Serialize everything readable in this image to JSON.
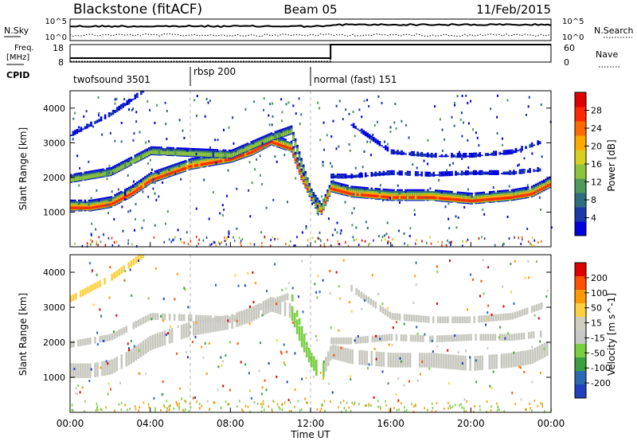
{
  "header": {
    "title": "Blackstone (fitACF)",
    "beam": "Beam 05",
    "date": "11/Feb/2015"
  },
  "noise_panel": {
    "left_label": "N.Sky",
    "right_label": "N.Search",
    "ticks_left": [
      "10^5",
      "10^0"
    ],
    "ticks_right": [
      "10^5",
      "10^0"
    ]
  },
  "freq_panel": {
    "left_label_1": "Freq.",
    "left_label_2": "[MHz]",
    "right_label": "Nave",
    "ticks_left": [
      "18",
      "8"
    ],
    "ticks_right": [
      "60",
      "0"
    ],
    "freq_before_mhz": 10.3,
    "freq_after_mhz": 18,
    "nave_before": 2,
    "nave_after": 60,
    "step_hour": 13.0
  },
  "cpid": {
    "label": "CPID",
    "segments": [
      {
        "name": "twofsound 3501",
        "start_hour": 0
      },
      {
        "name": "rbsp 200",
        "start_hour": 6
      },
      {
        "name": "normal (fast) 151",
        "start_hour": 12
      }
    ]
  },
  "chart_data": [
    {
      "type": "heatmap",
      "title": "Power",
      "ylabel": "Slant Range [km]",
      "colorbar_label": "Power [dB]",
      "colorbar_ticks": [
        "28",
        "24",
        "20",
        "16",
        "12",
        "8",
        "4"
      ],
      "colorbar_colors": [
        "#0000e0",
        "#1a3aa8",
        "#2e6f7f",
        "#4f9a5a",
        "#8cc43c",
        "#d8d020",
        "#ffaa00",
        "#ff6a00",
        "#ff2a00",
        "#e00000"
      ],
      "ylim": [
        0,
        4500
      ],
      "yticks": [
        "1000",
        "2000",
        "3000",
        "4000"
      ],
      "xlim_hours": [
        0,
        24
      ],
      "bands": [
        {
          "hours": [
            0,
            1,
            2,
            3,
            4,
            5,
            6,
            7,
            8,
            9,
            10,
            11,
            11.5,
            12,
            12.5,
            13,
            14,
            16,
            18,
            20,
            22,
            23,
            24
          ],
          "range_km": [
            1100,
            1100,
            1200,
            1500,
            1900,
            2100,
            2300,
            2400,
            2500,
            2700,
            3000,
            2800,
            2000,
            1400,
            1000,
            1650,
            1500,
            1400,
            1400,
            1300,
            1400,
            1500,
            1800
          ],
          "level": "strong"
        },
        {
          "hours": [
            0,
            2,
            4,
            6,
            8,
            10,
            11,
            11.8,
            12.3
          ],
          "range_km": [
            1900,
            2100,
            2700,
            2650,
            2600,
            3100,
            3300,
            1800,
            1000
          ],
          "level": "medium"
        },
        {
          "hours": [
            13,
            14,
            16,
            18,
            20,
            22,
            23.5
          ],
          "range_km": [
            2000,
            2000,
            2100,
            2050,
            2100,
            2100,
            2200
          ],
          "level": "weak"
        },
        {
          "hours": [
            14,
            16,
            18,
            20,
            22,
            23.5
          ],
          "range_km": [
            3500,
            2700,
            2600,
            2600,
            2700,
            3000
          ],
          "level": "weak"
        },
        {
          "hours": [
            0,
            1,
            2,
            3,
            3.7
          ],
          "range_km": [
            3200,
            3500,
            3800,
            4200,
            4500
          ],
          "level": "weak"
        }
      ]
    },
    {
      "type": "heatmap",
      "title": "Velocity",
      "ylabel": "Slant Range [km]",
      "xlabel": "Time UT",
      "colorbar_label": "Velocity [m s^-1]",
      "colorbar_ticks": [
        "200",
        "100",
        "50",
        "15",
        "-15",
        "-50",
        "-100",
        "-200"
      ],
      "colorbar_colors": [
        "#e00000",
        "#ff5000",
        "#ff9a00",
        "#ffd040",
        "#cfcfc0",
        "#c8c8c8",
        "#78d040",
        "#3aa040",
        "#2a6ab0",
        "#2040c0"
      ],
      "ylim": [
        0,
        4500
      ],
      "yticks": [
        "1000",
        "2000",
        "3000",
        "4000"
      ],
      "xlim_hours": [
        0,
        24
      ],
      "xticks": [
        "00:00",
        "04:00",
        "08:00",
        "12:00",
        "16:00",
        "20:00",
        "00:00"
      ]
    }
  ]
}
